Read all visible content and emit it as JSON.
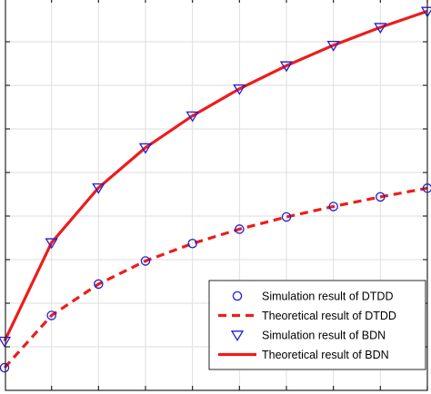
{
  "chart_data": {
    "type": "line",
    "title": "",
    "xlabel": "",
    "ylabel": "",
    "x": [
      1,
      2,
      3,
      4,
      5,
      6,
      7,
      8,
      9,
      10
    ],
    "xlim": [
      1,
      10
    ],
    "ylim": [
      0,
      9
    ],
    "grid": true,
    "legend_position": "bottom-right",
    "series": [
      {
        "name": "Simulation result of DTDD",
        "style": "marker",
        "marker": "circle",
        "color": "#1f1fd8",
        "values": [
          0.52,
          1.72,
          2.44,
          2.97,
          3.37,
          3.7,
          3.98,
          4.22,
          4.44,
          4.64
        ]
      },
      {
        "name": "Theoretical result of DTDD",
        "style": "dashed",
        "color": "#ee1c1c",
        "values": [
          0.52,
          1.72,
          2.44,
          2.97,
          3.37,
          3.7,
          3.98,
          4.22,
          4.44,
          4.64
        ]
      },
      {
        "name": "Simulation result of BDN",
        "style": "marker",
        "marker": "triangle-down",
        "color": "#1f1fd8",
        "values": [
          1.13,
          3.39,
          4.65,
          5.57,
          6.3,
          6.92,
          7.45,
          7.92,
          8.33,
          8.7
        ]
      },
      {
        "name": "Theoretical result of BDN",
        "style": "solid",
        "color": "#ee1c1c",
        "values": [
          1.13,
          3.39,
          4.65,
          5.57,
          6.3,
          6.92,
          7.45,
          7.92,
          8.33,
          8.7
        ]
      }
    ]
  }
}
